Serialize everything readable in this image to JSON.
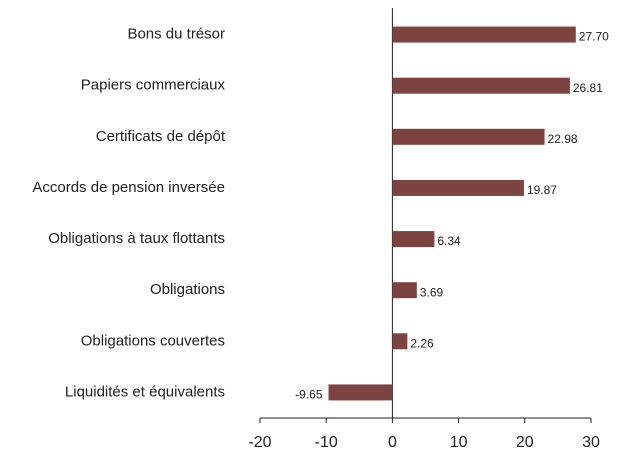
{
  "chart_data": {
    "type": "bar",
    "orientation": "horizontal",
    "categories": [
      "Bons du trésor",
      "Papiers commerciaux",
      "Certificats de dépôt",
      "Accords de pension inversée",
      "Obligations à taux flottants",
      "Obligations",
      "Obligations couvertes",
      "Liquidités et équivalents"
    ],
    "values": [
      27.7,
      26.81,
      22.98,
      19.87,
      6.34,
      3.69,
      2.26,
      -9.65
    ],
    "value_labels": [
      "27.70",
      "26.81",
      "22.98",
      "19.87",
      "6.34",
      "3.69",
      "2.26",
      "-9.65"
    ],
    "color": "#7d4340",
    "xlim": [
      -20,
      30
    ],
    "xticks": [
      -20,
      -10,
      0,
      10,
      20,
      30
    ]
  }
}
